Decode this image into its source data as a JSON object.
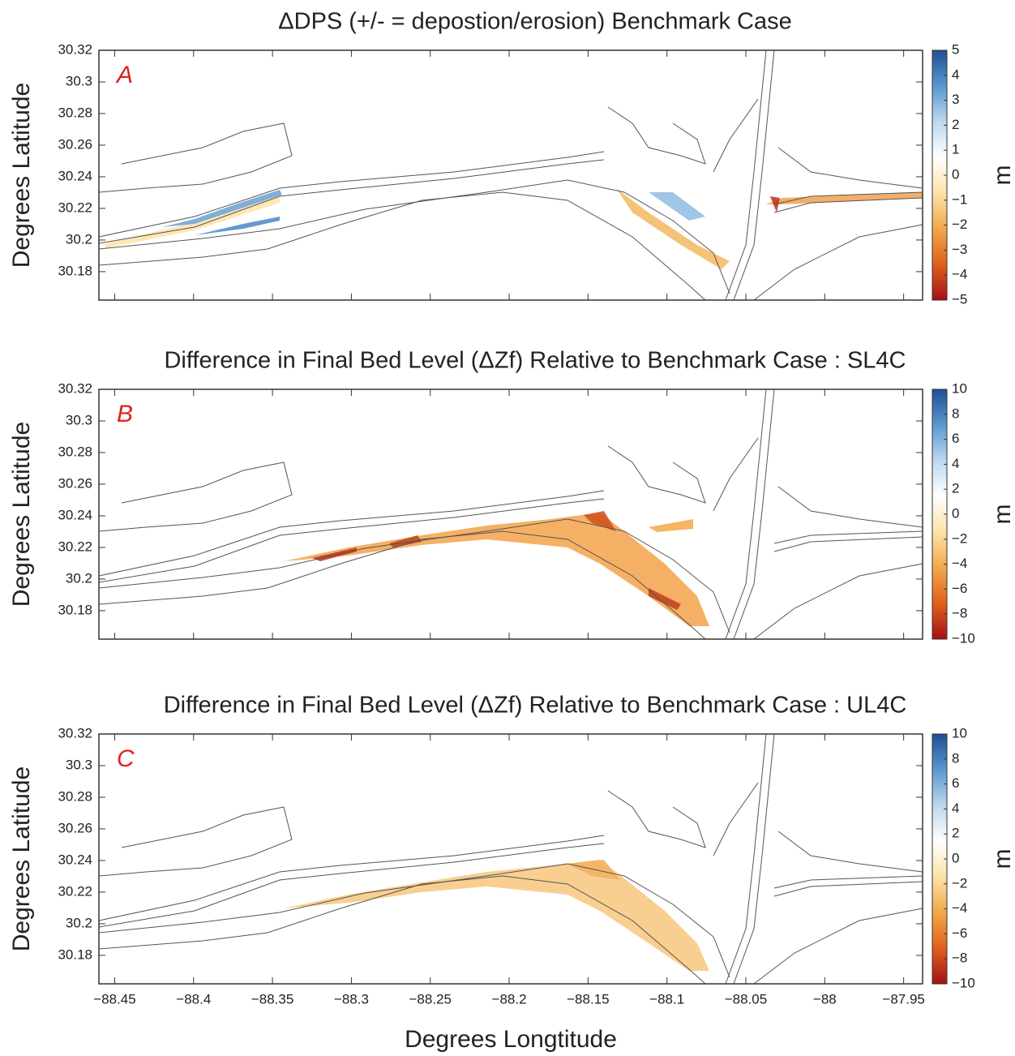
{
  "chart_data": [
    {
      "type": "heatmap",
      "title": "ΔDPS (+/- = depostion/erosion) Benchmark Case",
      "panel_label": "A",
      "ylabel": "Degrees Latitude",
      "xlim": [
        -88.46,
        -87.938
      ],
      "xticks": [
        -88.45,
        -88.4,
        -88.35,
        -88.3,
        -88.25,
        -88.2,
        -88.15,
        -88.1,
        -88.05,
        -88,
        -87.95
      ],
      "ylim": [
        30.162,
        30.32
      ],
      "yticks": [
        30.18,
        30.2,
        30.22,
        30.24,
        30.26,
        30.28,
        30.3,
        30.32
      ],
      "colormap": [
        "#a50f15",
        "#e0601b",
        "#f3a84a",
        "#fbe3a8",
        "#ffffff",
        "#bcd8ee",
        "#5b97cf",
        "#1f4e94"
      ],
      "colorbar": {
        "label": "m",
        "lim": [
          -5,
          5
        ],
        "ticks": [
          5,
          4,
          3,
          2,
          1,
          0,
          {
            "value": -1,
            "label": "−1"
          },
          {
            "value": -2,
            "label": "−2"
          },
          {
            "value": -3,
            "label": "−3"
          },
          {
            "value": -4,
            "label": "−4"
          },
          {
            "value": -5,
            "label": "−5"
          }
        ]
      }
    },
    {
      "type": "heatmap",
      "title": "Difference in Final Bed Level (ΔZf) Relative to Benchmark Case : SL4C",
      "panel_label": "B",
      "ylabel": "Degrees Latitude",
      "xlim": [
        -88.46,
        -87.938
      ],
      "xticks": [
        -88.45,
        -88.4,
        -88.35,
        -88.3,
        -88.25,
        -88.2,
        -88.15,
        -88.1,
        -88.05,
        -88,
        -87.95
      ],
      "ylim": [
        30.162,
        30.32
      ],
      "yticks": [
        30.18,
        30.2,
        30.22,
        30.24,
        30.26,
        30.28,
        30.3,
        30.32
      ],
      "colormap": [
        "#a50f15",
        "#e0601b",
        "#f3a84a",
        "#fbe3a8",
        "#ffffff",
        "#bcd8ee",
        "#5b97cf",
        "#1f4e94"
      ],
      "colorbar": {
        "label": "m",
        "lim": [
          -10,
          10
        ],
        "ticks": [
          10,
          8,
          6,
          4,
          2,
          0,
          {
            "value": -2,
            "label": "−2"
          },
          {
            "value": -4,
            "label": "−4"
          },
          {
            "value": -6,
            "label": "−6"
          },
          {
            "value": -8,
            "label": "−8"
          },
          {
            "value": -10,
            "label": "−10"
          }
        ]
      }
    },
    {
      "type": "heatmap",
      "title": "Difference in Final Bed Level (ΔZf) Relative to Benchmark Case : UL4C",
      "panel_label": "C",
      "ylabel": "Degrees Latitude",
      "xlabel": "Degrees Longtitude",
      "xlim": [
        -88.46,
        -87.938
      ],
      "xticks": [
        {
          "value": -88.45,
          "label": "−88.45"
        },
        {
          "value": -88.4,
          "label": "−88.4"
        },
        {
          "value": -88.35,
          "label": "−88.35"
        },
        {
          "value": -88.3,
          "label": "−88.3"
        },
        {
          "value": -88.25,
          "label": "−88.25"
        },
        {
          "value": -88.2,
          "label": "−88.2"
        },
        {
          "value": -88.15,
          "label": "−88.15"
        },
        {
          "value": -88.1,
          "label": "−88.1"
        },
        {
          "value": -88.05,
          "label": "−88.05"
        },
        {
          "value": -88,
          "label": "−88"
        },
        {
          "value": -87.95,
          "label": "−87.95"
        }
      ],
      "ylim": [
        30.162,
        30.32
      ],
      "yticks": [
        30.18,
        30.2,
        30.22,
        30.24,
        30.26,
        30.28,
        30.3,
        30.32
      ],
      "colormap": [
        "#a50f15",
        "#e0601b",
        "#f3a84a",
        "#fbe3a8",
        "#ffffff",
        "#bcd8ee",
        "#5b97cf",
        "#1f4e94"
      ],
      "colorbar": {
        "label": "m",
        "lim": [
          -10,
          10
        ],
        "ticks": [
          10,
          8,
          6,
          4,
          2,
          0,
          {
            "value": -2,
            "label": "−2"
          },
          {
            "value": -4,
            "label": "−4"
          },
          {
            "value": -6,
            "label": "−6"
          },
          {
            "value": -8,
            "label": "−8"
          },
          {
            "value": -10,
            "label": "−10"
          }
        ]
      }
    }
  ]
}
